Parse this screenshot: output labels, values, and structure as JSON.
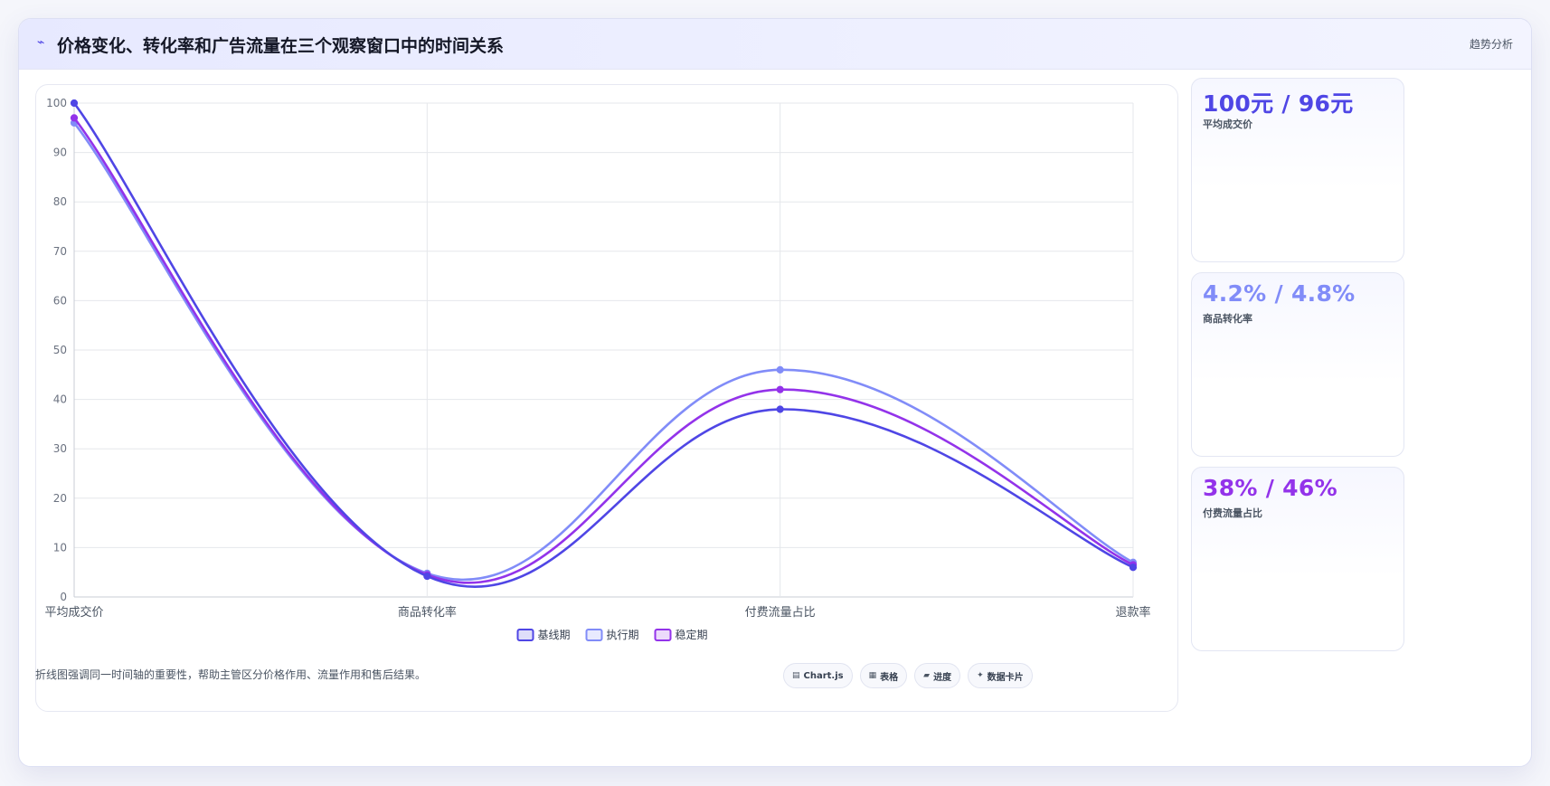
{
  "header": {
    "icon": "trend-icon",
    "title": "价格变化、转化率和广告流量在三个观察窗口中的时间关系",
    "tag": "趋势分析"
  },
  "chart_data": {
    "type": "line",
    "categories": [
      "平均成交价",
      "商品转化率",
      "付费流量占比",
      "退款率"
    ],
    "series": [
      {
        "name": "基线期",
        "values": [
          100,
          4.2,
          38,
          6
        ],
        "color": "#4f46e5"
      },
      {
        "name": "执行期",
        "values": [
          96,
          4.8,
          46,
          7
        ],
        "color": "#818cf8"
      },
      {
        "name": "稳定期",
        "values": [
          97,
          4.5,
          42,
          6.5
        ],
        "color": "#9333ea"
      }
    ],
    "ylim": [
      0,
      100
    ],
    "yticks": [
      0,
      10,
      20,
      30,
      40,
      50,
      60,
      70,
      80,
      90,
      100
    ],
    "grid": true,
    "legend": "bottom"
  },
  "kpis": [
    {
      "value": "100元 / 96元",
      "label": "平均成交价",
      "color": "#4f46e5"
    },
    {
      "value": "4.2% / 4.8%",
      "label": "商品转化率",
      "color": "#818cf8"
    },
    {
      "value": "38% / 46%",
      "label": "付费流量占比",
      "color": "#9333ea"
    }
  ],
  "footer": {
    "note": "折线图强调同一时间轴的重要性，帮助主管区分价格作用、流量作用和售后结果。",
    "pills": [
      {
        "icon": "chart-icon",
        "glyph": "▤",
        "label": "Chart.js"
      },
      {
        "icon": "table-icon",
        "glyph": "▦",
        "label": "表格"
      },
      {
        "icon": "progress-icon",
        "glyph": "▰",
        "label": "进度"
      },
      {
        "icon": "sparkle-icon",
        "glyph": "✦",
        "label": "数据卡片"
      }
    ]
  }
}
